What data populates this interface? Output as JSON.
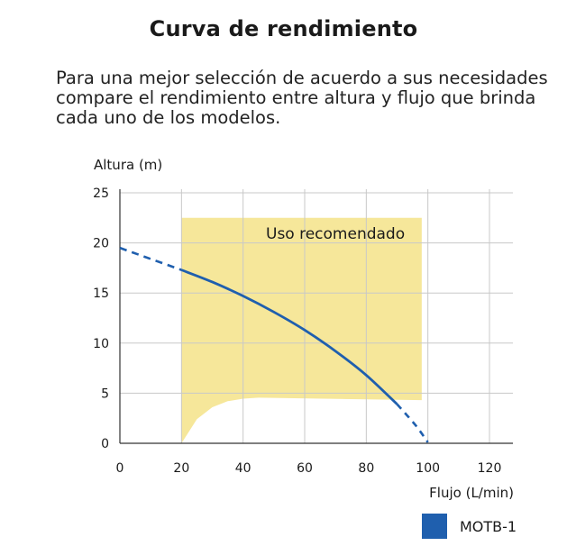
{
  "header": {
    "title": "Curva de rendimiento",
    "description_lines": [
      "Para una mejor selección de acuerdo a sus necesidades",
      "compare el rendimiento entre altura y flujo que brinda",
      "cada uno de los modelos."
    ]
  },
  "colors": {
    "curve": "#1f5fae",
    "region": "#f6e79a",
    "grid": "#c8c8c8",
    "axis": "#333333"
  },
  "chart_data": {
    "type": "line",
    "xlabel": "Flujo (L/min)",
    "ylabel": "Altura (m)",
    "xlim": [
      0,
      120
    ],
    "ylim": [
      0,
      25
    ],
    "xticks": [
      0,
      20,
      40,
      60,
      80,
      100,
      120
    ],
    "yticks": [
      0,
      5,
      10,
      15,
      20,
      25
    ],
    "grid": true,
    "legend_position": "bottom-right",
    "annotations": [
      {
        "text": "Uso recomendado",
        "x": 47,
        "y": 21
      }
    ],
    "recommended_region": {
      "label": "Uso recomendado",
      "x_range": [
        20,
        98
      ],
      "y_top": 22.5,
      "lower_boundary": [
        [
          20,
          0
        ],
        [
          25,
          2.4
        ],
        [
          30,
          3.6
        ],
        [
          35,
          4.2
        ],
        [
          40,
          4.45
        ],
        [
          45,
          4.55
        ],
        [
          98,
          4.3
        ]
      ]
    },
    "series": [
      {
        "name": "MOTB-1",
        "color": "#1f5fae",
        "values_dashed_start": [
          [
            0,
            19.5
          ],
          [
            20,
            17.3
          ]
        ],
        "values": [
          [
            20,
            17.3
          ],
          [
            30,
            16.1
          ],
          [
            40,
            14.7
          ],
          [
            50,
            13.1
          ],
          [
            60,
            11.3
          ],
          [
            70,
            9.2
          ],
          [
            80,
            6.8
          ],
          [
            90,
            3.9
          ]
        ],
        "values_dashed_end": [
          [
            90,
            3.9
          ],
          [
            96,
            1.8
          ],
          [
            100,
            0.1
          ]
        ]
      }
    ]
  }
}
